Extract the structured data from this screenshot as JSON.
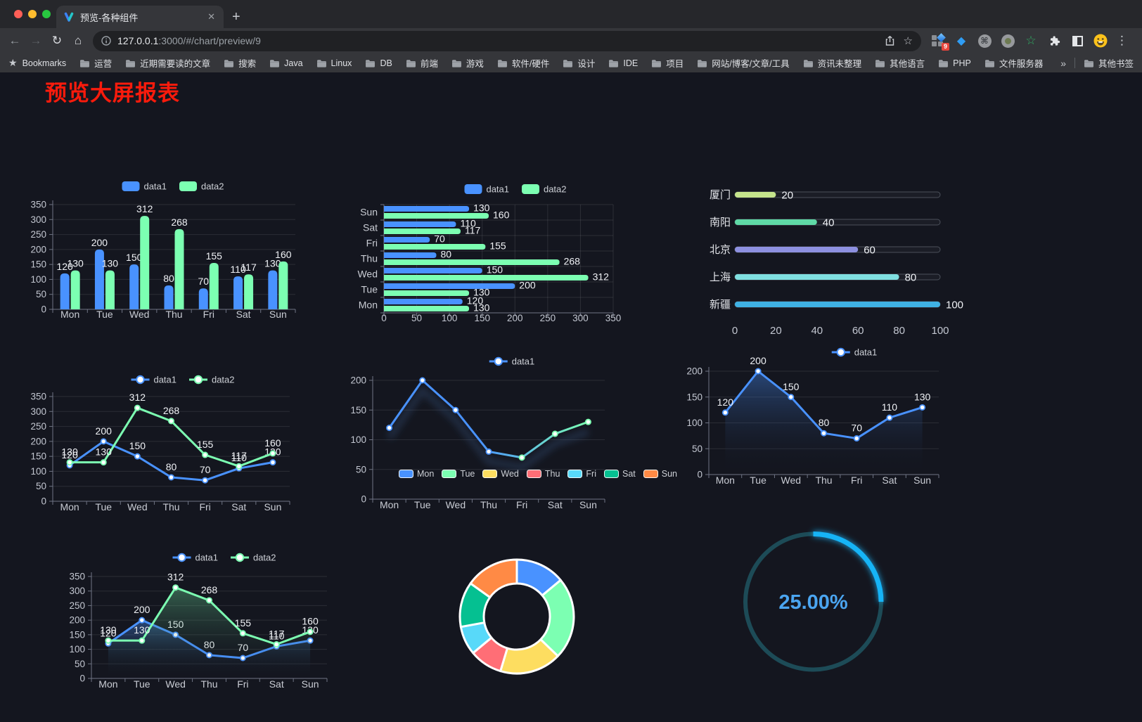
{
  "browser": {
    "tab": {
      "title": "预览-各种组件"
    },
    "url": {
      "host": "127.0.0.1",
      "rest": ":3000/#/chart/preview/9"
    },
    "icons": {
      "back": "←",
      "forward": "→",
      "reload": "↻",
      "home": "⌂",
      "new_tab": "+",
      "tab_close": "✕",
      "bookmark_star": "☆",
      "menu": "⋮",
      "bookmarks_star": "★",
      "overflow": "»",
      "cmd": "⌘",
      "gem": "◆",
      "green_star": "☆"
    },
    "extensions": {
      "badge": "9"
    },
    "bookmarks_bar": {
      "bookmarks_label": "Bookmarks",
      "folders": [
        "运营",
        "近期需要读的文章",
        "搜索",
        "Java",
        "Linux",
        "DB",
        "前端",
        "游戏",
        "软件/硬件",
        "设计",
        "IDE",
        "项目",
        "网站/博客/文章/工具",
        "资讯未整理",
        "其他语言",
        "PHP",
        "文件服务器"
      ],
      "other_bookmarks": "其他书签"
    }
  },
  "page": {
    "title": "预览大屏报表",
    "title_color": "#fa1b0c",
    "background": "#14161f"
  },
  "chart_data": [
    {
      "id": "c1",
      "type": "bar",
      "categories": [
        "Mon",
        "Tue",
        "Wed",
        "Thu",
        "Fri",
        "Sat",
        "Sun"
      ],
      "series": [
        {
          "name": "data1",
          "color": "#4992ff",
          "values": [
            120,
            200,
            150,
            80,
            70,
            110,
            130
          ]
        },
        {
          "name": "data2",
          "color": "#7cffb2",
          "values": [
            130,
            130,
            312,
            268,
            155,
            117,
            160
          ]
        }
      ],
      "ylim": [
        0,
        350
      ],
      "yticks": [
        0,
        50,
        100,
        150,
        200,
        250,
        300,
        350
      ],
      "legend_position": "top",
      "grid": true,
      "value_labels": true
    },
    {
      "id": "c2",
      "type": "bar-horizontal",
      "categories_top_to_bottom": [
        "Sun",
        "Sat",
        "Fri",
        "Thu",
        "Wed",
        "Tue",
        "Mon"
      ],
      "series": [
        {
          "name": "data1",
          "color": "#4992ff",
          "values_top_to_bottom": [
            130,
            110,
            70,
            80,
            150,
            200,
            120
          ]
        },
        {
          "name": "data2",
          "color": "#7cffb2",
          "values_top_to_bottom": [
            160,
            117,
            155,
            268,
            312,
            130,
            130
          ]
        }
      ],
      "xlim": [
        0,
        350
      ],
      "xticks": [
        0,
        50,
        100,
        150,
        200,
        250,
        300,
        350
      ],
      "legend_position": "top",
      "grid": true,
      "value_labels": true
    },
    {
      "id": "c3",
      "type": "progress",
      "items": [
        {
          "label": "厦门",
          "value": 20,
          "color": "#c5e48c"
        },
        {
          "label": "南阳",
          "value": 40,
          "color": "#5fd9a6"
        },
        {
          "label": "北京",
          "value": 60,
          "color": "#8d90e0"
        },
        {
          "label": "上海",
          "value": 80,
          "color": "#7fdfe0"
        },
        {
          "label": "新疆",
          "value": 100,
          "color": "#3fb1e3"
        }
      ],
      "xlim": [
        0,
        100
      ],
      "xticks": [
        0,
        20,
        40,
        60,
        80,
        100
      ]
    },
    {
      "id": "c4",
      "type": "line",
      "categories": [
        "Mon",
        "Tue",
        "Wed",
        "Thu",
        "Fri",
        "Sat",
        "Sun"
      ],
      "series": [
        {
          "name": "data1",
          "color": "#4992ff",
          "values": [
            120,
            200,
            150,
            80,
            70,
            110,
            130
          ]
        },
        {
          "name": "data2",
          "color": "#7cffb2",
          "values": [
            130,
            130,
            312,
            268,
            155,
            117,
            160
          ]
        }
      ],
      "ylim": [
        0,
        350
      ],
      "yticks": [
        0,
        50,
        100,
        150,
        200,
        250,
        300,
        350
      ],
      "legend_position": "top",
      "grid": true,
      "value_labels": true
    },
    {
      "id": "c5",
      "type": "line",
      "categories": [
        "Mon",
        "Tue",
        "Wed",
        "Thu",
        "Fri",
        "Sat",
        "Sun"
      ],
      "series": [
        {
          "name": "data1",
          "gradient": [
            "#4992ff",
            "#7cffb2"
          ],
          "values": [
            120,
            200,
            150,
            80,
            70,
            110,
            130
          ]
        }
      ],
      "ylim": [
        0,
        200
      ],
      "yticks": [
        0,
        50,
        100,
        150,
        200
      ],
      "legend_position": "top",
      "grid": true,
      "value_labels": false
    },
    {
      "id": "c6",
      "type": "area",
      "categories": [
        "Mon",
        "Tue",
        "Wed",
        "Thu",
        "Fri",
        "Sat",
        "Sun"
      ],
      "series": [
        {
          "name": "data1",
          "color": "#4992ff",
          "area": "rgba(73,146,255,0.40)",
          "values": [
            120,
            200,
            150,
            80,
            70,
            110,
            130
          ]
        }
      ],
      "ylim": [
        0,
        200
      ],
      "yticks": [
        0,
        50,
        100,
        150,
        200
      ],
      "legend_position": "top",
      "grid": true,
      "value_labels": true
    },
    {
      "id": "c7",
      "type": "area",
      "categories": [
        "Mon",
        "Tue",
        "Wed",
        "Thu",
        "Fri",
        "Sat",
        "Sun"
      ],
      "series": [
        {
          "name": "data1",
          "color": "#4992ff",
          "area": "rgba(73,146,255,0.40)",
          "values": [
            120,
            200,
            150,
            80,
            70,
            110,
            130
          ]
        },
        {
          "name": "data2",
          "color": "#7cffb2",
          "area": "rgba(124,255,178,0.32)",
          "values": [
            130,
            130,
            312,
            268,
            155,
            117,
            160
          ]
        }
      ],
      "ylim": [
        0,
        350
      ],
      "yticks": [
        0,
        50,
        100,
        150,
        200,
        250,
        300,
        350
      ],
      "legend_position": "top",
      "grid": true,
      "value_labels": true
    },
    {
      "id": "c8",
      "type": "pie",
      "categories": [
        "Mon",
        "Tue",
        "Wed",
        "Thu",
        "Fri",
        "Sat",
        "Sun"
      ],
      "values": [
        120,
        200,
        150,
        80,
        70,
        110,
        130
      ],
      "colors": [
        "#4992ff",
        "#7cffb2",
        "#fddd60",
        "#ff6e76",
        "#58d9f9",
        "#05c091",
        "#ff8a45"
      ],
      "legend_position": "top",
      "donut": true,
      "border_color": "#ffffff"
    },
    {
      "id": "c9",
      "type": "gauge",
      "value": 25,
      "max": 100,
      "display": "25.00%",
      "progress_color": "#18b4f6",
      "track_color": "#1d4b57",
      "text_color": "#4ba5f0"
    }
  ]
}
